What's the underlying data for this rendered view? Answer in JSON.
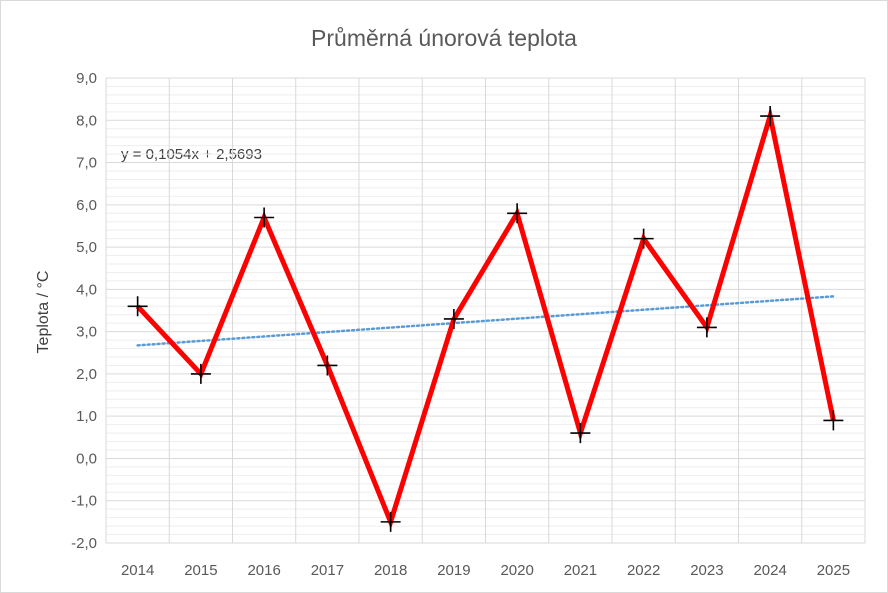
{
  "chart_data": {
    "type": "line",
    "title": "Průměrná únorová teplota",
    "ylabel": "Teplota / °C",
    "xlabel": "",
    "categories": [
      "2014",
      "2015",
      "2016",
      "2017",
      "2018",
      "2019",
      "2020",
      "2021",
      "2022",
      "2023",
      "2024",
      "2025"
    ],
    "series": [
      {
        "values": [
          3.6,
          2.0,
          5.7,
          2.2,
          -1.5,
          3.3,
          5.8,
          0.6,
          5.2,
          3.1,
          8.1,
          0.9
        ],
        "color": "#ff0000",
        "marker": "plus"
      }
    ],
    "trendline": {
      "equation": "y = 0,1054x + 2,5693",
      "slope": 0.1054,
      "intercept": 2.5693,
      "color": "#5b9bd5",
      "style": "dotted"
    },
    "ylim": [
      -2.0,
      9.0
    ],
    "yticks": [
      "9,0",
      "8,0",
      "7,0",
      "6,0",
      "5,0",
      "4,0",
      "3,0",
      "2,0",
      "1,0",
      "0,0",
      "-1,0",
      "-2,0"
    ],
    "grid": true
  }
}
